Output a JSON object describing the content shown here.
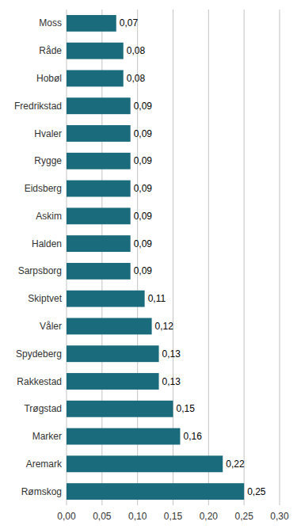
{
  "chart_data": {
    "type": "bar",
    "orientation": "horizontal",
    "categories": [
      "Rømskog",
      "Aremark",
      "Marker",
      "Trøgstad",
      "Rakkestad",
      "Spydeberg",
      "Våler",
      "Skiptvet",
      "Sarpsborg",
      "Halden",
      "Askim",
      "Eidsberg",
      "Rygge",
      "Hvaler",
      "Fredrikstad",
      "Hobøl",
      "Råde",
      "Moss"
    ],
    "values": [
      0.25,
      0.22,
      0.16,
      0.15,
      0.13,
      0.13,
      0.12,
      0.11,
      0.09,
      0.09,
      0.09,
      0.09,
      0.09,
      0.09,
      0.09,
      0.08,
      0.08,
      0.07
    ],
    "value_labels": [
      "0,25",
      "0,22",
      "0,16",
      "0,15",
      "0,13",
      "0,13",
      "0,12",
      "0,11",
      "0,09",
      "0,09",
      "0,09",
      "0,09",
      "0,09",
      "0,09",
      "0,09",
      "0,08",
      "0,08",
      "0,07"
    ],
    "data_labels": true,
    "color": "#1a6b7c",
    "xlim": [
      0,
      0.3
    ],
    "xticks": [
      {
        "value": 0.0,
        "label": "0,00"
      },
      {
        "value": 0.05,
        "label": "0,05"
      },
      {
        "value": 0.1,
        "label": "0,10"
      },
      {
        "value": 0.15,
        "label": "0,15"
      },
      {
        "value": 0.2,
        "label": "0,20"
      },
      {
        "value": 0.25,
        "label": "0,25"
      },
      {
        "value": 0.3,
        "label": "0,30"
      }
    ],
    "grid": true
  }
}
